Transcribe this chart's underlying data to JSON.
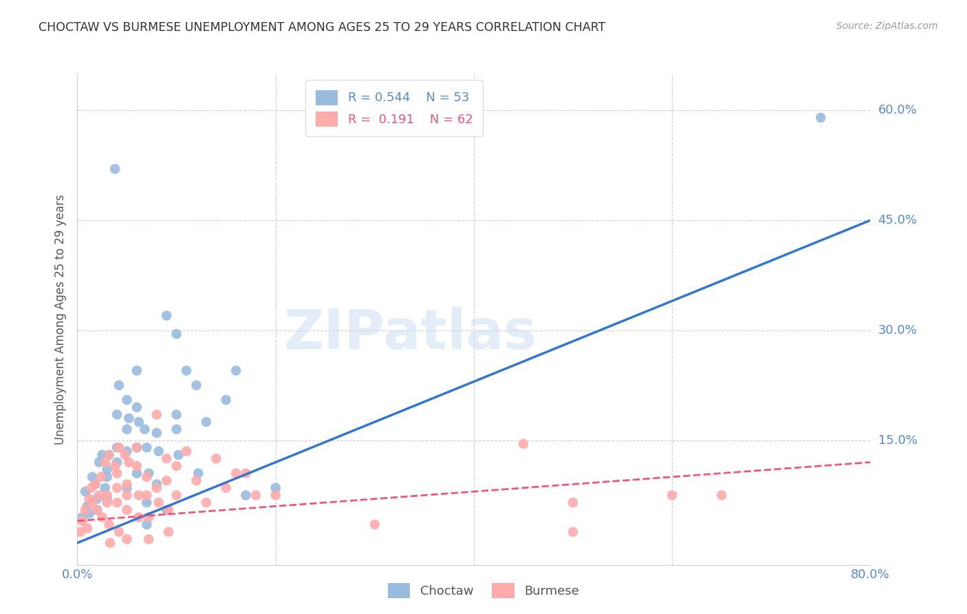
{
  "title": "CHOCTAW VS BURMESE UNEMPLOYMENT AMONG AGES 25 TO 29 YEARS CORRELATION CHART",
  "source": "Source: ZipAtlas.com",
  "ylabel": "Unemployment Among Ages 25 to 29 years",
  "xlim": [
    0.0,
    0.8
  ],
  "ylim": [
    -0.02,
    0.65
  ],
  "y_ticks": [
    0.15,
    0.3,
    0.45,
    0.6
  ],
  "y_tick_labels": [
    "15.0%",
    "30.0%",
    "45.0%",
    "60.0%"
  ],
  "x_ticks": [
    0.0,
    0.2,
    0.4,
    0.6,
    0.8
  ],
  "x_tick_labels": [
    "0.0%",
    "",
    "",
    "",
    "80.0%"
  ],
  "choctaw_color": "#99BBDD",
  "burmese_color": "#FFAAAA",
  "choctaw_line_color": "#3377CC",
  "burmese_line_color": "#EE5577",
  "R_choctaw": "0.544",
  "N_choctaw": "53",
  "R_burmese": "0.191",
  "N_burmese": "62",
  "watermark": "ZIPatlas",
  "background_color": "#FFFFFF",
  "grid_color": "#CCCCCC",
  "tick_color": "#5588CC",
  "choctaw_line": {
    "x0": 0.0,
    "y0": 0.01,
    "x1": 0.8,
    "y1": 0.45
  },
  "burmese_line": {
    "x0": 0.0,
    "y0": 0.04,
    "x1": 0.8,
    "y1": 0.12
  },
  "choctaw_points": [
    [
      0.005,
      0.045
    ],
    [
      0.008,
      0.08
    ],
    [
      0.01,
      0.06
    ],
    [
      0.012,
      0.05
    ],
    [
      0.015,
      0.1
    ],
    [
      0.018,
      0.09
    ],
    [
      0.02,
      0.07
    ],
    [
      0.022,
      0.12
    ],
    [
      0.02,
      0.055
    ],
    [
      0.025,
      0.13
    ],
    [
      0.03,
      0.11
    ],
    [
      0.028,
      0.085
    ],
    [
      0.032,
      0.13
    ],
    [
      0.03,
      0.1
    ],
    [
      0.03,
      0.07
    ],
    [
      0.038,
      0.52
    ],
    [
      0.04,
      0.14
    ],
    [
      0.04,
      0.185
    ],
    [
      0.042,
      0.225
    ],
    [
      0.04,
      0.12
    ],
    [
      0.05,
      0.205
    ],
    [
      0.05,
      0.165
    ],
    [
      0.052,
      0.18
    ],
    [
      0.05,
      0.135
    ],
    [
      0.05,
      0.085
    ],
    [
      0.06,
      0.245
    ],
    [
      0.06,
      0.195
    ],
    [
      0.06,
      0.14
    ],
    [
      0.062,
      0.175
    ],
    [
      0.06,
      0.105
    ],
    [
      0.068,
      0.165
    ],
    [
      0.07,
      0.14
    ],
    [
      0.072,
      0.105
    ],
    [
      0.07,
      0.065
    ],
    [
      0.07,
      0.035
    ],
    [
      0.08,
      0.16
    ],
    [
      0.082,
      0.135
    ],
    [
      0.08,
      0.09
    ],
    [
      0.09,
      0.32
    ],
    [
      0.09,
      0.055
    ],
    [
      0.1,
      0.295
    ],
    [
      0.1,
      0.185
    ],
    [
      0.1,
      0.165
    ],
    [
      0.102,
      0.13
    ],
    [
      0.11,
      0.245
    ],
    [
      0.12,
      0.225
    ],
    [
      0.122,
      0.105
    ],
    [
      0.13,
      0.175
    ],
    [
      0.15,
      0.205
    ],
    [
      0.16,
      0.245
    ],
    [
      0.17,
      0.075
    ],
    [
      0.2,
      0.085
    ],
    [
      0.75,
      0.59
    ]
  ],
  "burmese_points": [
    [
      0.003,
      0.025
    ],
    [
      0.005,
      0.04
    ],
    [
      0.008,
      0.055
    ],
    [
      0.01,
      0.03
    ],
    [
      0.012,
      0.07
    ],
    [
      0.014,
      0.085
    ],
    [
      0.015,
      0.065
    ],
    [
      0.018,
      0.09
    ],
    [
      0.02,
      0.055
    ],
    [
      0.022,
      0.075
    ],
    [
      0.024,
      0.1
    ],
    [
      0.025,
      0.045
    ],
    [
      0.028,
      0.12
    ],
    [
      0.03,
      0.075
    ],
    [
      0.032,
      0.13
    ],
    [
      0.03,
      0.065
    ],
    [
      0.032,
      0.035
    ],
    [
      0.033,
      0.01
    ],
    [
      0.038,
      0.115
    ],
    [
      0.04,
      0.085
    ],
    [
      0.042,
      0.14
    ],
    [
      0.04,
      0.105
    ],
    [
      0.04,
      0.065
    ],
    [
      0.042,
      0.025
    ],
    [
      0.048,
      0.13
    ],
    [
      0.05,
      0.09
    ],
    [
      0.05,
      0.075
    ],
    [
      0.052,
      0.12
    ],
    [
      0.05,
      0.055
    ],
    [
      0.05,
      0.015
    ],
    [
      0.06,
      0.14
    ],
    [
      0.06,
      0.115
    ],
    [
      0.062,
      0.075
    ],
    [
      0.062,
      0.045
    ],
    [
      0.07,
      0.1
    ],
    [
      0.07,
      0.075
    ],
    [
      0.072,
      0.045
    ],
    [
      0.072,
      0.015
    ],
    [
      0.08,
      0.185
    ],
    [
      0.08,
      0.085
    ],
    [
      0.082,
      0.065
    ],
    [
      0.09,
      0.125
    ],
    [
      0.09,
      0.095
    ],
    [
      0.092,
      0.055
    ],
    [
      0.092,
      0.025
    ],
    [
      0.1,
      0.115
    ],
    [
      0.1,
      0.075
    ],
    [
      0.11,
      0.135
    ],
    [
      0.12,
      0.095
    ],
    [
      0.13,
      0.065
    ],
    [
      0.14,
      0.125
    ],
    [
      0.15,
      0.085
    ],
    [
      0.16,
      0.105
    ],
    [
      0.17,
      0.105
    ],
    [
      0.18,
      0.075
    ],
    [
      0.2,
      0.075
    ],
    [
      0.3,
      0.035
    ],
    [
      0.45,
      0.145
    ],
    [
      0.5,
      0.065
    ],
    [
      0.5,
      0.025
    ],
    [
      0.6,
      0.075
    ],
    [
      0.65,
      0.075
    ]
  ]
}
